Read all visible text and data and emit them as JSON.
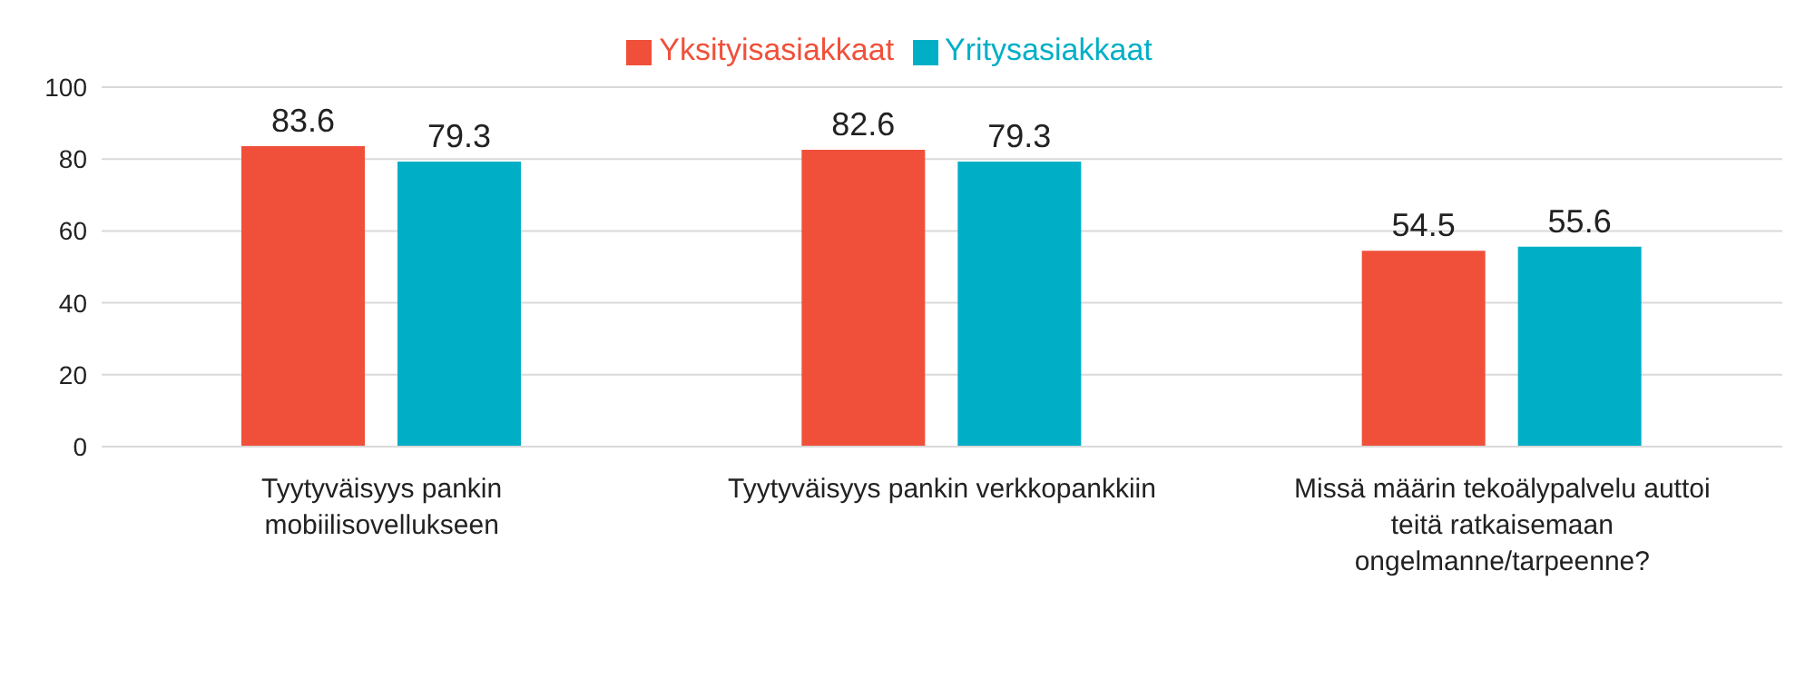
{
  "chart_data": {
    "type": "bar",
    "categories": [
      "Tyytyväisyys pankin mobiilisovellukseen",
      "Tyytyväisyys pankin verkkopankkiin",
      "Missä määrin tekoälypalvelu auttoi teitä ratkaisemaan ongelmanne/tarpeenne?"
    ],
    "series": [
      {
        "name": "Yksityisasiakkaat",
        "color": "#f0503a",
        "values": [
          83.6,
          82.6,
          54.5
        ]
      },
      {
        "name": "Yritysasiakkaat",
        "color": "#00afc6",
        "values": [
          79.3,
          79.3,
          55.6
        ]
      }
    ],
    "ylim": [
      0,
      100
    ],
    "yticks": [
      0,
      20,
      40,
      60,
      80,
      100
    ],
    "grid": "y",
    "legend": "top",
    "data_labels": true
  }
}
